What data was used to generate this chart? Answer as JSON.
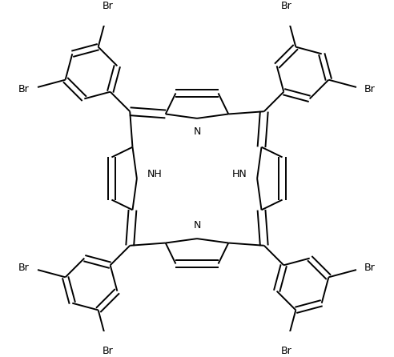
{
  "background_color": "#ffffff",
  "line_color": "#000000",
  "lw": 1.4,
  "fs": 9.0,
  "xlim": [
    -3.5,
    3.5
  ],
  "ylim": [
    -3.3,
    3.3
  ]
}
